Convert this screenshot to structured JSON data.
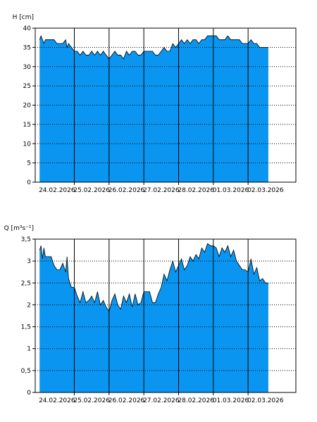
{
  "colors": {
    "fill": "#0a96f0",
    "line": "#000000",
    "grid": "#000000",
    "background": "#ffffff"
  },
  "chart_data": [
    {
      "type": "area",
      "ylabel": "H [cm]",
      "ylim": [
        0,
        40
      ],
      "yticks": [
        0,
        5,
        10,
        15,
        20,
        25,
        30,
        35,
        40
      ],
      "ytick_labels": [
        "0",
        "5",
        "10",
        "15",
        "20",
        "25",
        "30",
        "35",
        "40"
      ],
      "xlim": [
        "2026-02-23T21:00",
        "2026-03-03T09:00"
      ],
      "day_lines": [
        "2026-02-25",
        "2026-02-26",
        "2026-02-27",
        "2026-02-28",
        "2026-03-01",
        "2026-03-02"
      ],
      "xtick_labels": [
        "24.02.2026",
        "25.02.2026",
        "26.02.2026",
        "27.02.2026",
        "28.02.2026",
        "01.03.2026",
        "02.03.2026"
      ],
      "grid": "horizontal dotted",
      "series": [
        {
          "x": [
            "2026-02-24T00:00",
            "2026-02-24T01:00",
            "2026-02-24T02:00",
            "2026-02-24T03:00",
            "2026-02-24T04:00",
            "2026-02-24T06:00",
            "2026-02-24T08:00",
            "2026-02-24T10:00",
            "2026-02-24T12:00",
            "2026-02-24T14:00",
            "2026-02-24T16:00",
            "2026-02-24T18:00",
            "2026-02-24T19:00",
            "2026-02-24T20:00",
            "2026-02-24T22:00",
            "2026-02-25T00:00",
            "2026-02-25T02:00",
            "2026-02-25T04:00",
            "2026-02-25T06:00",
            "2026-02-25T08:00",
            "2026-02-25T10:00",
            "2026-02-25T12:00",
            "2026-02-25T14:00",
            "2026-02-25T16:00",
            "2026-02-25T18:00",
            "2026-02-25T20:00",
            "2026-02-25T22:00",
            "2026-02-26T00:00",
            "2026-02-26T02:00",
            "2026-02-26T04:00",
            "2026-02-26T06:00",
            "2026-02-26T08:00",
            "2026-02-26T10:00",
            "2026-02-26T12:00",
            "2026-02-26T14:00",
            "2026-02-26T16:00",
            "2026-02-26T18:00",
            "2026-02-26T20:00",
            "2026-02-26T22:00",
            "2026-02-27T00:00",
            "2026-02-27T02:00",
            "2026-02-27T04:00",
            "2026-02-27T06:00",
            "2026-02-27T08:00",
            "2026-02-27T10:00",
            "2026-02-27T12:00",
            "2026-02-27T14:00",
            "2026-02-27T16:00",
            "2026-02-27T18:00",
            "2026-02-27T20:00",
            "2026-02-27T22:00",
            "2026-02-28T00:00",
            "2026-02-28T02:00",
            "2026-02-28T04:00",
            "2026-02-28T06:00",
            "2026-02-28T08:00",
            "2026-02-28T10:00",
            "2026-02-28T12:00",
            "2026-02-28T14:00",
            "2026-02-28T16:00",
            "2026-02-28T18:00",
            "2026-02-28T20:00",
            "2026-02-28T22:00",
            "2026-03-01T00:00",
            "2026-03-01T02:00",
            "2026-03-01T04:00",
            "2026-03-01T06:00",
            "2026-03-01T08:00",
            "2026-03-01T10:00",
            "2026-03-01T12:00",
            "2026-03-01T14:00",
            "2026-03-01T16:00",
            "2026-03-01T18:00",
            "2026-03-01T20:00",
            "2026-03-01T22:00",
            "2026-03-02T00:00",
            "2026-03-02T02:00",
            "2026-03-02T04:00",
            "2026-03-02T06:00",
            "2026-03-02T08:00",
            "2026-03-02T10:00",
            "2026-03-02T12:00",
            "2026-03-02T14:00"
          ],
          "y": [
            37,
            38,
            37,
            36,
            37,
            37,
            37,
            37,
            36,
            36,
            36,
            37,
            35,
            36,
            35,
            34,
            34,
            33,
            34,
            33,
            33,
            34,
            33,
            34,
            33,
            34,
            33,
            32,
            33,
            34,
            33,
            33,
            32,
            34,
            33,
            34,
            34,
            33,
            33,
            34,
            34,
            34,
            34,
            33,
            33,
            34,
            35,
            34,
            34,
            36,
            35,
            36,
            37,
            36,
            37,
            36,
            37,
            37,
            36,
            37,
            37,
            38,
            38,
            38,
            38,
            37,
            37,
            37,
            38,
            37,
            37,
            37,
            37,
            36,
            36,
            36,
            37,
            36,
            36,
            35,
            35,
            35,
            35
          ]
        }
      ]
    },
    {
      "type": "area",
      "ylabel": "Q [m³s⁻¹]",
      "ylim": [
        0,
        3.5
      ],
      "yticks": [
        0,
        0.5,
        1,
        1.5,
        2,
        2.5,
        3,
        3.5
      ],
      "ytick_labels": [
        "0",
        "0,5",
        "1",
        "1,5",
        "2",
        "2,5",
        "3",
        "3,5"
      ],
      "xlim": [
        "2026-02-23T21:00",
        "2026-03-03T09:00"
      ],
      "day_lines": [
        "2026-02-25",
        "2026-02-26",
        "2026-02-27",
        "2026-02-28",
        "2026-03-01",
        "2026-03-02"
      ],
      "xtick_labels": [
        "24.02.2026",
        "25.02.2026",
        "26.02.2026",
        "27.02.2026",
        "28.02.2026",
        "01.03.2026",
        "02.03.2026"
      ],
      "grid": "horizontal dotted",
      "series": [
        {
          "x": [
            "2026-02-24T00:00",
            "2026-02-24T01:00",
            "2026-02-24T02:00",
            "2026-02-24T03:00",
            "2026-02-24T04:00",
            "2026-02-24T06:00",
            "2026-02-24T08:00",
            "2026-02-24T10:00",
            "2026-02-24T12:00",
            "2026-02-24T14:00",
            "2026-02-24T16:00",
            "2026-02-24T18:00",
            "2026-02-24T19:00",
            "2026-02-24T20:00",
            "2026-02-24T22:00",
            "2026-02-25T00:00",
            "2026-02-25T02:00",
            "2026-02-25T04:00",
            "2026-02-25T06:00",
            "2026-02-25T08:00",
            "2026-02-25T10:00",
            "2026-02-25T12:00",
            "2026-02-25T14:00",
            "2026-02-25T16:00",
            "2026-02-25T18:00",
            "2026-02-25T20:00",
            "2026-02-25T22:00",
            "2026-02-26T00:00",
            "2026-02-26T02:00",
            "2026-02-26T04:00",
            "2026-02-26T06:00",
            "2026-02-26T08:00",
            "2026-02-26T10:00",
            "2026-02-26T12:00",
            "2026-02-26T14:00",
            "2026-02-26T16:00",
            "2026-02-26T18:00",
            "2026-02-26T20:00",
            "2026-02-26T22:00",
            "2026-02-27T00:00",
            "2026-02-27T02:00",
            "2026-02-27T04:00",
            "2026-02-27T06:00",
            "2026-02-27T08:00",
            "2026-02-27T10:00",
            "2026-02-27T12:00",
            "2026-02-27T14:00",
            "2026-02-27T16:00",
            "2026-02-27T18:00",
            "2026-02-27T20:00",
            "2026-02-27T22:00",
            "2026-02-28T00:00",
            "2026-02-28T02:00",
            "2026-02-28T04:00",
            "2026-02-28T06:00",
            "2026-02-28T08:00",
            "2026-02-28T10:00",
            "2026-02-28T12:00",
            "2026-02-28T14:00",
            "2026-02-28T16:00",
            "2026-02-28T18:00",
            "2026-02-28T20:00",
            "2026-02-28T22:00",
            "2026-03-01T00:00",
            "2026-03-01T02:00",
            "2026-03-01T04:00",
            "2026-03-01T06:00",
            "2026-03-01T08:00",
            "2026-03-01T10:00",
            "2026-03-01T12:00",
            "2026-03-01T14:00",
            "2026-03-01T16:00",
            "2026-03-01T18:00",
            "2026-03-01T20:00",
            "2026-03-01T22:00",
            "2026-03-02T00:00",
            "2026-03-02T02:00",
            "2026-03-02T04:00",
            "2026-03-02T06:00",
            "2026-03-02T08:00",
            "2026-03-02T10:00",
            "2026-03-02T12:00",
            "2026-03-02T14:00"
          ],
          "y": [
            3.25,
            3.35,
            3.05,
            3.3,
            3.1,
            3.1,
            3.1,
            2.9,
            2.8,
            2.8,
            2.95,
            2.75,
            3.1,
            2.6,
            2.4,
            2.4,
            2.2,
            2.05,
            2.3,
            2.05,
            2.1,
            2.2,
            2.05,
            2.3,
            2.0,
            2.1,
            1.95,
            1.85,
            2.1,
            2.25,
            2.0,
            1.9,
            2.2,
            2.05,
            2.25,
            1.95,
            2.25,
            2.0,
            2.05,
            2.3,
            2.3,
            2.3,
            2.05,
            2.05,
            2.25,
            2.4,
            2.7,
            2.55,
            2.8,
            3.0,
            2.75,
            2.9,
            3.05,
            2.8,
            2.9,
            3.1,
            3.0,
            3.15,
            3.05,
            3.3,
            3.2,
            3.4,
            3.35,
            3.35,
            3.3,
            3.1,
            3.3,
            3.2,
            3.35,
            3.1,
            3.25,
            3.0,
            2.9,
            2.8,
            2.8,
            2.75,
            3.05,
            2.7,
            2.85,
            2.55,
            2.6,
            2.5,
            2.5
          ]
        }
      ]
    }
  ]
}
